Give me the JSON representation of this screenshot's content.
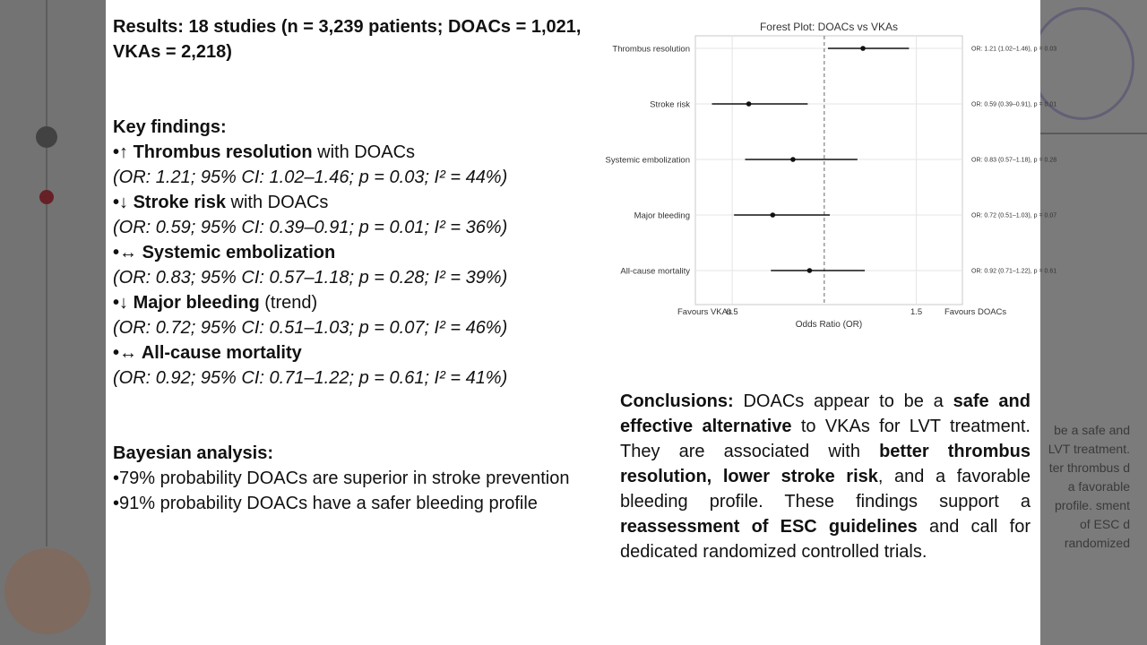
{
  "results_heading": "Results: 18 studies (n = 3,239 patients; DOACs = 1,021, VKAs = 2,218)",
  "key_findings": {
    "heading": "Key findings:",
    "items": [
      {
        "bullet": "•↑ ",
        "label": "Thrombus resolution",
        "suffix": " with DOACs",
        "stats": "(OR: 1.21; 95% CI: 1.02–1.46; p = 0.03; I² = 44%)"
      },
      {
        "bullet": "•↓ ",
        "label": "Stroke risk",
        "suffix": " with DOACs",
        "stats": "(OR: 0.59; 95% CI: 0.39–0.91; p = 0.01; I² = 36%)"
      },
      {
        "bullet": "•↔ ",
        "label": "Systemic embolization",
        "suffix": "",
        "stats": "(OR: 0.83; 95% CI: 0.57–1.18; p = 0.28; I² = 39%)"
      },
      {
        "bullet": "•↓ ",
        "label": "Major bleeding",
        "suffix": " (trend)",
        "stats": "(OR: 0.72; 95% CI: 0.51–1.03; p = 0.07; I² = 46%)"
      },
      {
        "bullet": "•↔ ",
        "label": "All-cause mortality",
        "suffix": "",
        "stats": "(OR: 0.92; 95% CI: 0.71–1.22; p = 0.61; I² = 41%)"
      }
    ]
  },
  "bayesian": {
    "heading": "Bayesian analysis:",
    "items": [
      "•79% probability DOACs are superior in stroke prevention",
      "•91% probability DOACs have a safer bleeding profile"
    ]
  },
  "conclusions": {
    "label": "Conclusions:",
    "t1": " DOACs appear to be a ",
    "b1": "safe and effective alternative",
    "t2": " to VKAs for LVT treatment. They are associated with ",
    "b2": "better thrombus resolution, lower stroke risk",
    "t3": ", and a favorable bleeding profile. These findings support a ",
    "b3": "reassessment of ESC guidelines",
    "t4": " and call for dedicated randomized controlled trials."
  },
  "background_slide": {
    "right_text": "be a safe and LVT treatment. ter thrombus d a favorable profile. sment of ESC d randomized"
  },
  "chart_data": {
    "type": "forest",
    "title": "Forest Plot: DOACs vs VKAs",
    "xlabel": "Odds Ratio (OR)",
    "xlim": [
      0.3,
      1.75
    ],
    "reference_line": 1.0,
    "xticks": [
      0.5,
      1.5
    ],
    "left_label": "Favours VKAs",
    "right_label": "Favours DOACs",
    "rows": [
      {
        "name": "Thrombus resolution",
        "or": 1.21,
        "lo": 1.02,
        "hi": 1.46,
        "annotation": "OR: 1.21 (1.02–1.46), p = 0.03"
      },
      {
        "name": "Stroke risk",
        "or": 0.59,
        "lo": 0.39,
        "hi": 0.91,
        "annotation": "OR: 0.59 (0.39–0.91), p = 0.01"
      },
      {
        "name": "Systemic embolization",
        "or": 0.83,
        "lo": 0.57,
        "hi": 1.18,
        "annotation": "OR: 0.83 (0.57–1.18), p = 0.28"
      },
      {
        "name": "Major bleeding",
        "or": 0.72,
        "lo": 0.51,
        "hi": 1.03,
        "annotation": "OR: 0.72 (0.51–1.03), p = 0.07"
      },
      {
        "name": "All-cause mortality",
        "or": 0.92,
        "lo": 0.71,
        "hi": 1.22,
        "annotation": "OR: 0.92 (0.71–1.22), p = 0.61"
      }
    ]
  }
}
